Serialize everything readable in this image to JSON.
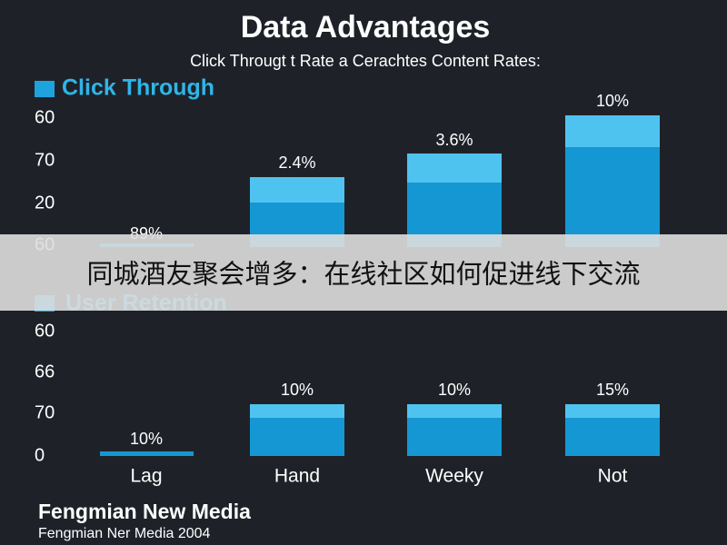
{
  "header": {
    "title": "Data Advantages",
    "subtitle": "Click Througt t Rate a Cerachtes Content Rates:"
  },
  "panels": [
    {
      "legend": "Click Through",
      "axis_labels": [
        "60",
        "70",
        "20",
        "60"
      ],
      "bar_labels": [
        "89%",
        "2.4%",
        "3.6%",
        "10%"
      ]
    },
    {
      "legend": "User Retention",
      "axis_labels": [
        "60",
        "66",
        "70",
        "0"
      ],
      "bar_labels": [
        "10%",
        "10%",
        "10%",
        "15%"
      ]
    }
  ],
  "categories": [
    "Lag",
    "Hand",
    "Weeky",
    "Not"
  ],
  "footer": {
    "brand": "Fengmian New Media",
    "line": "Fengmian Ner Media 2004"
  },
  "banner": "同城酒友聚会增多：在线社区如何促进线下交流"
}
